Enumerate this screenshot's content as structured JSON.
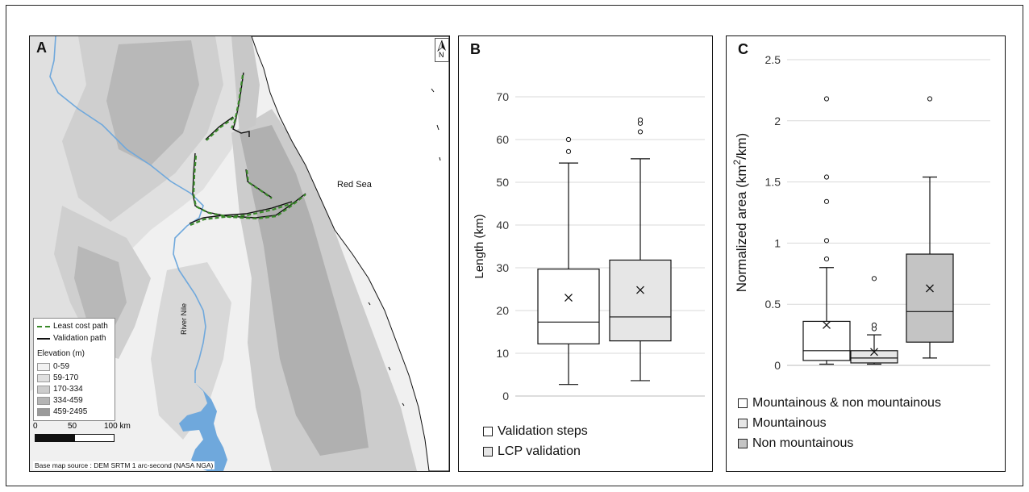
{
  "panel_a": {
    "letter": "A",
    "north_label": "N",
    "sea_label": "Red Sea",
    "river_label": "River Nile",
    "legend": {
      "lcp_label": "Least cost path",
      "validation_label": "Validation path",
      "elevation_title": "Elevation (m)",
      "classes": [
        {
          "label": "0-59",
          "color": "#f2f2f2"
        },
        {
          "label": "59-170",
          "color": "#e0e0e0"
        },
        {
          "label": "170-334",
          "color": "#cccccc"
        },
        {
          "label": "334-459",
          "color": "#b5b5b5"
        },
        {
          "label": "459-2495",
          "color": "#9a9a9a"
        }
      ]
    },
    "scale": {
      "labels": [
        "0",
        "50",
        "100 km"
      ]
    },
    "source_text": "Base map source : DEM SRTM 1 arc-second (NASA NGA)",
    "colors": {
      "water": "#6fa8dc",
      "lcp": "#3a8a2a",
      "validation": "#111111"
    }
  },
  "panel_b": {
    "letter": "B"
  },
  "panel_c": {
    "letter": "C"
  },
  "chart_data": [
    {
      "type": "box",
      "panel": "B",
      "title": "",
      "xlabel": "",
      "ylabel": "Length (km)",
      "ylim": [
        0,
        70
      ],
      "yticks": [
        "0",
        "10",
        "20",
        "30",
        "40",
        "50",
        "60",
        "70"
      ],
      "grid": true,
      "legend_position": "bottom",
      "series": [
        {
          "name": "Validation steps",
          "color": "#ffffff",
          "min": 2.7,
          "q1": 12.2,
          "median": 17.3,
          "q3": 29.7,
          "max": 54.5,
          "mean": 23.0,
          "outliers": [
            57.2,
            60.0
          ]
        },
        {
          "name": "LCP validation",
          "color": "#e6e6e6",
          "min": 3.6,
          "q1": 12.9,
          "median": 18.5,
          "q3": 31.8,
          "max": 55.5,
          "mean": 24.8,
          "outliers": [
            61.8,
            63.8,
            64.6
          ]
        }
      ]
    },
    {
      "type": "box",
      "panel": "C",
      "title": "",
      "xlabel": "",
      "ylabel_prefix": "Normalized area (km",
      "ylabel_sup": "2",
      "ylabel_suffix": "/km)",
      "ylim": [
        0,
        2.5
      ],
      "yticks": [
        "0",
        "0.5",
        "1",
        "1.5",
        "2",
        "2.5"
      ],
      "grid": true,
      "legend_position": "bottom",
      "series": [
        {
          "name": "Mountainous & non mountainous",
          "color": "#ffffff",
          "min": 0.01,
          "q1": 0.04,
          "median": 0.12,
          "q3": 0.36,
          "max": 0.8,
          "mean": 0.33,
          "outliers": [
            0.87,
            1.02,
            1.34,
            1.54,
            2.18
          ]
        },
        {
          "name": "Mountainous",
          "color": "#e6e6e6",
          "min": 0.01,
          "q1": 0.02,
          "median": 0.06,
          "q3": 0.12,
          "max": 0.25,
          "mean": 0.11,
          "outliers": [
            0.3,
            0.33,
            0.71
          ]
        },
        {
          "name": "Non mountainous",
          "color": "#c4c4c4",
          "min": 0.06,
          "q1": 0.19,
          "median": 0.44,
          "q3": 0.91,
          "max": 1.54,
          "mean": 0.63,
          "outliers": [
            2.18
          ]
        }
      ]
    }
  ]
}
